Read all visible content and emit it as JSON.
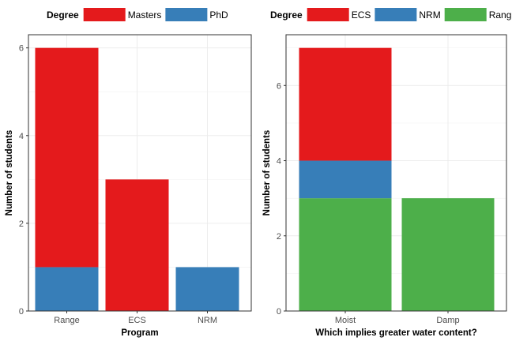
{
  "chart_data": [
    {
      "type": "bar",
      "stacked": true,
      "xlabel": "Program",
      "ylabel": "Number of students",
      "categories": [
        "Range",
        "ECS",
        "NRM"
      ],
      "ylim": [
        0,
        6.3
      ],
      "yticks": [
        0,
        2,
        4,
        6
      ],
      "grid": true,
      "legend_title": "Degree",
      "legend_position": "top",
      "series": [
        {
          "name": "Masters",
          "color": "#E41A1C",
          "values": [
            5,
            3,
            0
          ]
        },
        {
          "name": "PhD",
          "color": "#377EB8",
          "values": [
            1,
            0,
            1
          ]
        }
      ],
      "stack_order": [
        "PhD",
        "Masters"
      ]
    },
    {
      "type": "bar",
      "stacked": true,
      "xlabel": "Which implies greater water content?",
      "ylabel": "Number of students",
      "categories": [
        "Moist",
        "Damp"
      ],
      "ylim": [
        0,
        7.35
      ],
      "yticks": [
        0,
        2,
        4,
        6
      ],
      "grid": true,
      "legend_title": "Degree",
      "legend_position": "top",
      "series": [
        {
          "name": "ECS",
          "color": "#E41A1C",
          "values": [
            3,
            0
          ]
        },
        {
          "name": "NRM",
          "color": "#377EB8",
          "values": [
            1,
            0
          ]
        },
        {
          "name": "Rang",
          "color": "#4DAF4A",
          "values": [
            3,
            3
          ]
        }
      ],
      "stack_order": [
        "Rang",
        "NRM",
        "ECS"
      ]
    }
  ]
}
